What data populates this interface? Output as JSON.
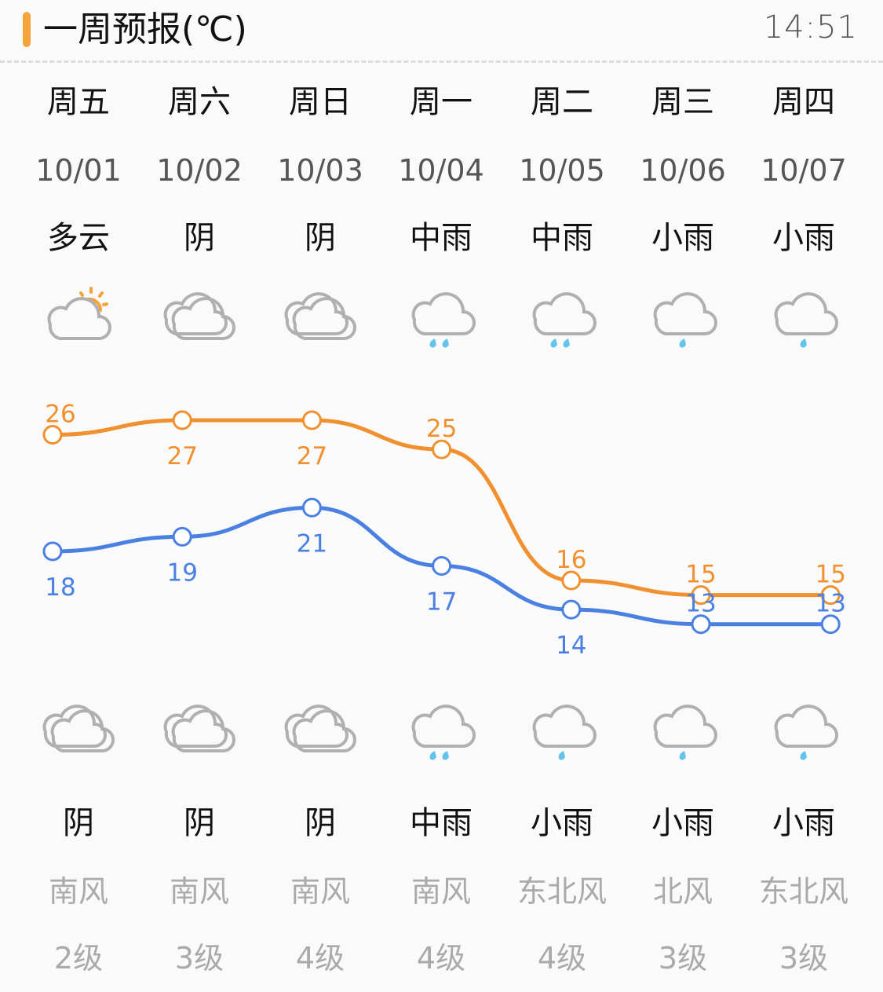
{
  "header": {
    "title": "一周预报(℃)",
    "time": "14:51"
  },
  "colors": {
    "high": "#f0902e",
    "low": "#4a80e2",
    "accent": "#f4a43a",
    "cloud": "#b0b0b0",
    "rain": "#63c3ea",
    "sun": "#f4a43a"
  },
  "days": [
    {
      "day": "周五",
      "date": "10/01",
      "day_weather": "多云",
      "day_icon": "partly-cloudy-icon",
      "night_icon": "overcast-icon",
      "night_weather": "阴",
      "wind": "南风",
      "level": "2级"
    },
    {
      "day": "周六",
      "date": "10/02",
      "day_weather": "阴",
      "day_icon": "overcast-icon",
      "night_icon": "overcast-icon",
      "night_weather": "阴",
      "wind": "南风",
      "level": "3级"
    },
    {
      "day": "周日",
      "date": "10/03",
      "day_weather": "阴",
      "day_icon": "overcast-icon",
      "night_icon": "overcast-icon",
      "night_weather": "阴",
      "wind": "南风",
      "level": "4级"
    },
    {
      "day": "周一",
      "date": "10/04",
      "day_weather": "中雨",
      "day_icon": "moderate-rain-icon",
      "night_icon": "moderate-rain-icon",
      "night_weather": "中雨",
      "wind": "南风",
      "level": "4级"
    },
    {
      "day": "周二",
      "date": "10/05",
      "day_weather": "中雨",
      "day_icon": "moderate-rain-icon",
      "night_icon": "light-rain-icon",
      "night_weather": "小雨",
      "wind": "东北风",
      "level": "4级"
    },
    {
      "day": "周三",
      "date": "10/06",
      "day_weather": "小雨",
      "day_icon": "light-rain-icon",
      "night_icon": "light-rain-icon",
      "night_weather": "小雨",
      "wind": "北风",
      "level": "3级"
    },
    {
      "day": "周四",
      "date": "10/07",
      "day_weather": "小雨",
      "day_icon": "light-rain-icon",
      "night_icon": "light-rain-icon",
      "night_weather": "小雨",
      "wind": "东北风",
      "level": "3级"
    }
  ],
  "chart_data": {
    "type": "line",
    "categories": [
      "10/01",
      "10/02",
      "10/03",
      "10/04",
      "10/05",
      "10/06",
      "10/07"
    ],
    "series": [
      {
        "values": [
          26,
          27,
          27,
          25,
          16,
          15,
          15
        ]
      },
      {
        "values": [
          18,
          19,
          21,
          17,
          14,
          13,
          13
        ]
      }
    ]
  }
}
